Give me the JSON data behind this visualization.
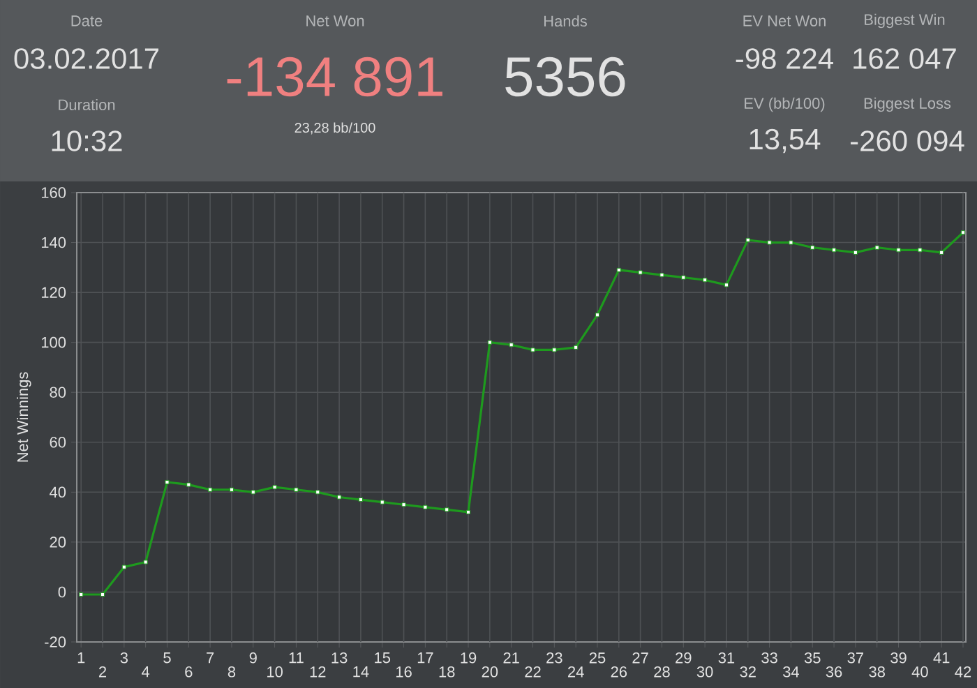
{
  "chart_data": [
    {
      "type": "other",
      "annotations": [
        "Date",
        "03.02.2017",
        "Duration",
        "10:32",
        "Net Won",
        "-134 891",
        "23,28 bb/100",
        "Hands",
        "5356",
        "EV Net Won",
        "-98 224",
        "Biggest Win",
        "162 047",
        "EV (bb/100)",
        "13,54",
        "Biggest Loss",
        "-260 094"
      ]
    },
    {
      "type": "line",
      "ylabel": "Net Winnings",
      "categories": [
        "1",
        "2",
        "3",
        "4",
        "5",
        "6",
        "7",
        "8",
        "9",
        "10",
        "11",
        "12",
        "13",
        "14",
        "15",
        "16",
        "17",
        "18",
        "19",
        "20",
        "21",
        "22",
        "23",
        "24",
        "25",
        "26",
        "27",
        "28",
        "29",
        "30",
        "31",
        "32",
        "33",
        "34",
        "35",
        "36",
        "37",
        "38",
        "39",
        "40",
        "41",
        "42"
      ],
      "values": [
        -1,
        -1,
        10,
        12,
        44,
        43,
        41,
        41,
        40,
        42,
        41,
        40,
        38,
        37,
        36,
        35,
        34,
        33,
        32,
        100,
        99,
        97,
        97,
        98,
        111,
        129,
        128,
        127,
        126,
        125,
        123,
        141,
        140,
        140,
        138,
        137,
        136,
        138,
        137,
        137,
        136,
        144
      ],
      "color": "#1e9a1e",
      "marker": "square",
      "ylim": [
        -20,
        160
      ],
      "yticks": [
        -20,
        0,
        20,
        40,
        60,
        80,
        100,
        120,
        140,
        160
      ],
      "grid": true
    }
  ]
}
